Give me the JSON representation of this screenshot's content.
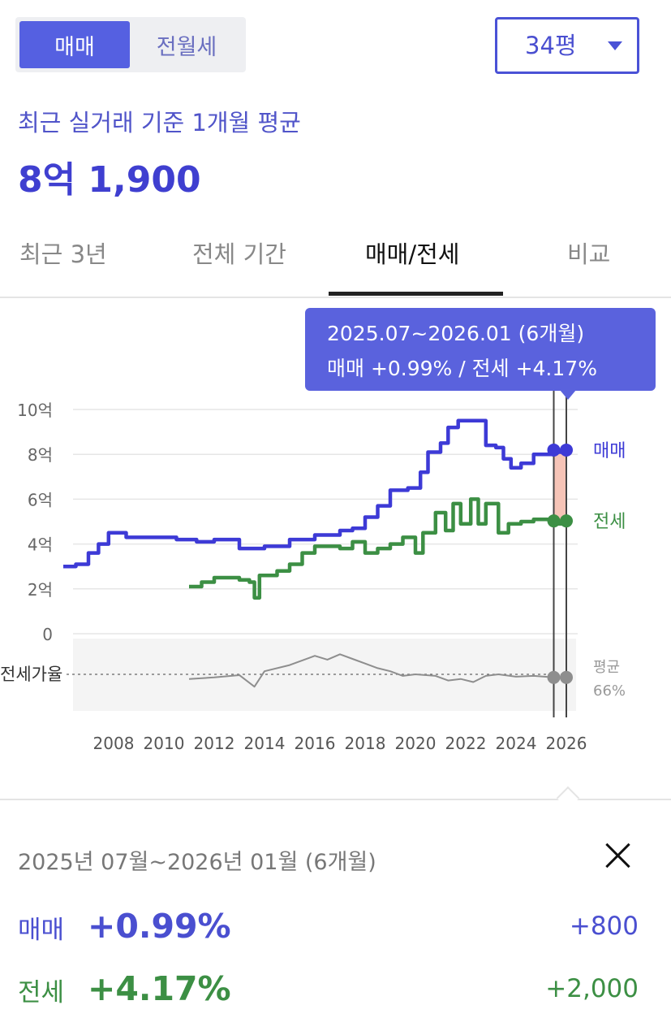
{
  "deal_toggle": {
    "options": [
      "매매",
      "전월세"
    ],
    "selected": "매매"
  },
  "size_select": {
    "value": "34평",
    "icon": "caret-down-icon"
  },
  "summary": {
    "caption": "최근 실거래 기준 1개월 평균",
    "price": "8억 1,900"
  },
  "tabs": [
    "최근 3년",
    "전체 기간",
    "매매/전세",
    "비교"
  ],
  "active_tab": "매매/전세",
  "tooltip": {
    "period": "2025.07~2026.01 (6개월)",
    "detail": "매매 +0.99%  /  전세 +4.17%"
  },
  "chart_data": {
    "type": "line",
    "x_unit": "year",
    "xticks": [
      "2008",
      "2010",
      "2012",
      "2014",
      "2016",
      "2018",
      "2020",
      "2022",
      "2024",
      "2026"
    ],
    "yticks": [
      "10억",
      "8억",
      "6억",
      "4억",
      "2억",
      "0"
    ],
    "ylim": [
      0,
      10
    ],
    "y_unit": "억",
    "grid": true,
    "series": [
      {
        "name": "매매",
        "color": "#3d3ad6",
        "points": [
          [
            2006.0,
            3.0
          ],
          [
            2006.5,
            3.1
          ],
          [
            2007.0,
            3.6
          ],
          [
            2007.4,
            4.0
          ],
          [
            2007.8,
            4.5
          ],
          [
            2008.5,
            4.3
          ],
          [
            2009.5,
            4.3
          ],
          [
            2010.5,
            4.2
          ],
          [
            2011.3,
            4.1
          ],
          [
            2012.0,
            4.2
          ],
          [
            2013.0,
            3.8
          ],
          [
            2014.0,
            3.9
          ],
          [
            2015.0,
            4.2
          ],
          [
            2016.0,
            4.4
          ],
          [
            2017.0,
            4.6
          ],
          [
            2017.5,
            4.7
          ],
          [
            2018.0,
            5.2
          ],
          [
            2018.5,
            5.7
          ],
          [
            2019.0,
            6.4
          ],
          [
            2019.7,
            6.5
          ],
          [
            2020.2,
            7.2
          ],
          [
            2020.5,
            8.1
          ],
          [
            2021.0,
            8.5
          ],
          [
            2021.3,
            9.2
          ],
          [
            2021.7,
            9.5
          ],
          [
            2022.5,
            9.5
          ],
          [
            2022.8,
            8.4
          ],
          [
            2023.2,
            8.3
          ],
          [
            2023.5,
            7.8
          ],
          [
            2023.8,
            7.4
          ],
          [
            2024.2,
            7.6
          ],
          [
            2024.7,
            8.0
          ],
          [
            2025.5,
            8.1
          ],
          [
            2026.0,
            8.19
          ]
        ]
      },
      {
        "name": "전세",
        "color": "#3c8f44",
        "points": [
          [
            2011.0,
            2.1
          ],
          [
            2011.5,
            2.3
          ],
          [
            2012.0,
            2.5
          ],
          [
            2013.0,
            2.4
          ],
          [
            2013.4,
            2.3
          ],
          [
            2013.6,
            1.6
          ],
          [
            2013.8,
            2.6
          ],
          [
            2014.5,
            2.8
          ],
          [
            2015.0,
            3.1
          ],
          [
            2015.5,
            3.6
          ],
          [
            2016.0,
            3.9
          ],
          [
            2017.0,
            3.8
          ],
          [
            2017.5,
            4.1
          ],
          [
            2018.0,
            3.6
          ],
          [
            2018.5,
            3.8
          ],
          [
            2019.0,
            4.0
          ],
          [
            2019.5,
            4.3
          ],
          [
            2020.0,
            3.6
          ],
          [
            2020.3,
            4.5
          ],
          [
            2020.8,
            5.4
          ],
          [
            2021.2,
            4.6
          ],
          [
            2021.5,
            5.8
          ],
          [
            2021.8,
            4.9
          ],
          [
            2022.2,
            6.0
          ],
          [
            2022.5,
            4.9
          ],
          [
            2022.8,
            5.8
          ],
          [
            2023.3,
            4.5
          ],
          [
            2023.7,
            4.9
          ],
          [
            2024.2,
            5.0
          ],
          [
            2024.7,
            5.1
          ],
          [
            2025.5,
            4.9
          ],
          [
            2026.0,
            5.03
          ]
        ]
      }
    ],
    "jeonse_ratio": {
      "label": "전세가율",
      "avg_label": "평균",
      "avg_value": "66%",
      "color": "#8e8e8e",
      "points": [
        [
          2011.0,
          60
        ],
        [
          2012.0,
          62
        ],
        [
          2013.0,
          65
        ],
        [
          2013.6,
          50
        ],
        [
          2014.0,
          70
        ],
        [
          2015.0,
          78
        ],
        [
          2016.0,
          90
        ],
        [
          2016.5,
          85
        ],
        [
          2017.0,
          92
        ],
        [
          2017.5,
          86
        ],
        [
          2018.0,
          80
        ],
        [
          2018.5,
          74
        ],
        [
          2019.0,
          70
        ],
        [
          2019.5,
          64
        ],
        [
          2020.0,
          66
        ],
        [
          2020.8,
          64
        ],
        [
          2021.3,
          58
        ],
        [
          2021.8,
          60
        ],
        [
          2022.3,
          56
        ],
        [
          2022.8,
          64
        ],
        [
          2023.3,
          66
        ],
        [
          2024.0,
          63
        ],
        [
          2024.7,
          64
        ],
        [
          2025.5,
          62
        ],
        [
          2026.0,
          62
        ]
      ]
    },
    "highlight": {
      "start": "2025.07",
      "end": "2026.01"
    }
  },
  "range_panel": {
    "title": "2025년 07월~2026년 01월 (6개월)",
    "close_icon": "close-icon",
    "rows": [
      {
        "label": "매매",
        "pct": "+0.99%",
        "amount": "+800",
        "color": "#4a4fd0"
      },
      {
        "label": "전세",
        "pct": "+4.17%",
        "amount": "+2,000",
        "color": "#3c8f44"
      }
    ]
  }
}
